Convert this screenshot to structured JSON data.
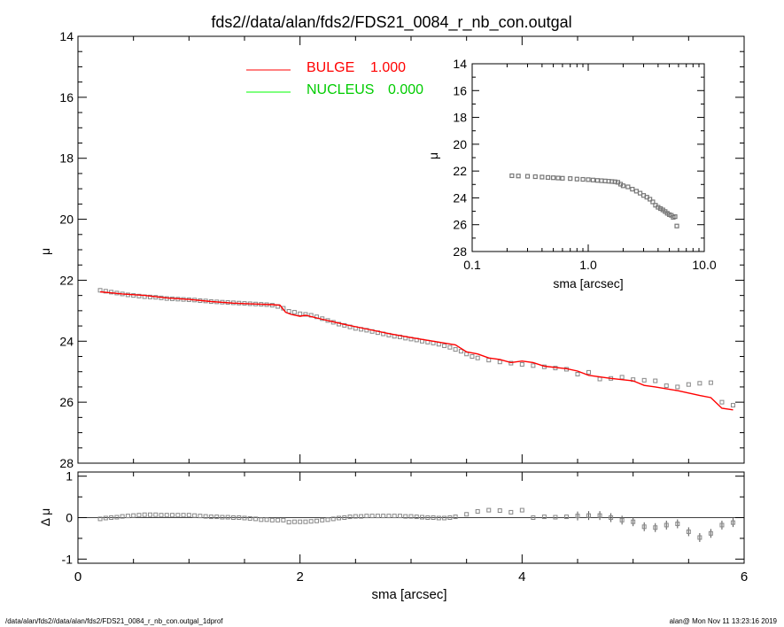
{
  "title": "fds2//data/alan/fds2/FDS21_0084_r_nb_con.outgal",
  "footer": {
    "left": "/data/alan/fds2//data/alan/fds2/FDS21_0084_r_nb_con.outgal_1dprof",
    "right": "alan@  Mon Nov 11 13:23:16 2019"
  },
  "legend": [
    {
      "name": "BULGE",
      "value": "1.000",
      "color": "#ff0000"
    },
    {
      "name": "NUCLEUS",
      "value": "0.000",
      "color": "#00ff00"
    }
  ],
  "chart_data": [
    {
      "type": "scatter",
      "panel": "main",
      "xlabel": "",
      "ylabel": "μ",
      "xlim": [
        0,
        6
      ],
      "ylim": [
        28,
        14
      ],
      "yticks": [
        "14",
        "16",
        "18",
        "20",
        "22",
        "24",
        "26",
        "28"
      ],
      "xticks": [],
      "series": [
        {
          "type": "scatter",
          "color": "#888888",
          "x": [
            0.2,
            0.25,
            0.3,
            0.35,
            0.4,
            0.45,
            0.5,
            0.55,
            0.6,
            0.65,
            0.7,
            0.75,
            0.8,
            0.85,
            0.9,
            0.95,
            1.0,
            1.05,
            1.1,
            1.15,
            1.2,
            1.25,
            1.3,
            1.35,
            1.4,
            1.45,
            1.5,
            1.55,
            1.6,
            1.65,
            1.7,
            1.75,
            1.8,
            1.85,
            1.9,
            1.95,
            2.0,
            2.05,
            2.1,
            2.15,
            2.2,
            2.25,
            2.3,
            2.35,
            2.4,
            2.45,
            2.5,
            2.55,
            2.6,
            2.65,
            2.7,
            2.75,
            2.8,
            2.85,
            2.9,
            2.95,
            3.0,
            3.05,
            3.1,
            3.15,
            3.2,
            3.25,
            3.3,
            3.35,
            3.4,
            3.45,
            3.5,
            3.55,
            3.6,
            3.7,
            3.8,
            3.9,
            4.0,
            4.1,
            4.2,
            4.3,
            4.4,
            4.5,
            4.6,
            4.7,
            4.8,
            4.9,
            5.0,
            5.1,
            5.2,
            5.3,
            5.4,
            5.5,
            5.6,
            5.7,
            5.8,
            5.9
          ],
          "y": [
            22.33,
            22.36,
            22.39,
            22.42,
            22.45,
            22.48,
            22.5,
            22.52,
            22.54,
            22.55,
            22.56,
            22.58,
            22.6,
            22.61,
            22.62,
            22.63,
            22.64,
            22.65,
            22.67,
            22.68,
            22.7,
            22.71,
            22.72,
            22.73,
            22.74,
            22.75,
            22.76,
            22.77,
            22.78,
            22.79,
            22.8,
            22.82,
            22.86,
            22.92,
            23.02,
            23.05,
            23.1,
            23.12,
            23.15,
            23.2,
            23.26,
            23.32,
            23.38,
            23.44,
            23.48,
            23.53,
            23.58,
            23.61,
            23.64,
            23.68,
            23.72,
            23.76,
            23.8,
            23.84,
            23.86,
            23.9,
            23.93,
            23.96,
            24.0,
            24.03,
            24.06,
            24.1,
            24.15,
            24.2,
            24.27,
            24.33,
            24.42,
            24.5,
            24.55,
            24.62,
            24.68,
            24.72,
            24.76,
            24.8,
            24.84,
            24.88,
            24.92,
            25.08,
            25.02,
            25.24,
            25.22,
            25.18,
            25.26,
            25.28,
            25.3,
            25.46,
            25.5,
            25.42,
            25.38,
            25.36,
            26.0,
            26.1
          ]
        },
        {
          "type": "line",
          "name": "BULGE",
          "color": "#ff0000",
          "x": [
            0.2,
            0.4,
            0.6,
            0.8,
            1.0,
            1.2,
            1.4,
            1.6,
            1.75,
            1.82,
            1.87,
            1.92,
            2.0,
            2.05,
            2.2,
            2.4,
            2.6,
            2.8,
            3.0,
            3.2,
            3.4,
            3.5,
            3.6,
            3.7,
            3.8,
            3.9,
            4.0,
            4.1,
            4.2,
            4.4,
            4.5,
            4.6,
            4.8,
            5.0,
            5.1,
            5.2,
            5.4,
            5.6,
            5.7,
            5.8,
            5.9
          ],
          "y": [
            22.38,
            22.45,
            22.5,
            22.58,
            22.63,
            22.7,
            22.75,
            22.78,
            22.8,
            22.82,
            23.05,
            23.12,
            23.18,
            23.15,
            23.28,
            23.45,
            23.6,
            23.75,
            23.88,
            24.0,
            24.12,
            24.35,
            24.42,
            24.55,
            24.6,
            24.7,
            24.65,
            24.7,
            24.82,
            24.9,
            24.98,
            25.12,
            25.22,
            25.3,
            25.45,
            25.5,
            25.62,
            25.78,
            25.85,
            26.2,
            26.25
          ]
        }
      ]
    },
    {
      "type": "scatter",
      "panel": "residual",
      "xlabel": "sma [arcsec]",
      "ylabel": "Δ μ",
      "xlim": [
        0,
        6
      ],
      "ylim": [
        -1.1,
        1.1
      ],
      "xticks": [
        "0",
        "2",
        "4",
        "6"
      ],
      "yticks": [
        "-1",
        "0",
        "1"
      ],
      "series": [
        {
          "type": "scatter",
          "color": "#888888",
          "x": [
            0.2,
            0.25,
            0.3,
            0.35,
            0.4,
            0.45,
            0.5,
            0.55,
            0.6,
            0.65,
            0.7,
            0.75,
            0.8,
            0.85,
            0.9,
            0.95,
            1.0,
            1.05,
            1.1,
            1.15,
            1.2,
            1.25,
            1.3,
            1.35,
            1.4,
            1.45,
            1.5,
            1.55,
            1.6,
            1.65,
            1.7,
            1.75,
            1.8,
            1.85,
            1.9,
            1.95,
            2.0,
            2.05,
            2.1,
            2.15,
            2.2,
            2.25,
            2.3,
            2.35,
            2.4,
            2.45,
            2.5,
            2.55,
            2.6,
            2.65,
            2.7,
            2.75,
            2.8,
            2.85,
            2.9,
            2.95,
            3.0,
            3.05,
            3.1,
            3.15,
            3.2,
            3.25,
            3.3,
            3.35,
            3.4,
            3.5,
            3.6,
            3.7,
            3.8,
            3.9,
            4.0,
            4.1,
            4.2,
            4.3,
            4.4,
            4.5,
            4.6,
            4.7,
            4.8,
            4.9,
            5.0,
            5.1,
            5.2,
            5.3,
            5.4,
            5.5,
            5.6,
            5.7,
            5.8,
            5.9
          ],
          "y": [
            -0.03,
            -0.01,
            0.0,
            0.01,
            0.03,
            0.04,
            0.05,
            0.06,
            0.07,
            0.07,
            0.07,
            0.06,
            0.06,
            0.06,
            0.06,
            0.06,
            0.06,
            0.05,
            0.04,
            0.03,
            0.02,
            0.02,
            0.01,
            0.01,
            0.0,
            0.0,
            -0.01,
            -0.02,
            -0.03,
            -0.05,
            -0.05,
            -0.06,
            -0.06,
            -0.06,
            -0.11,
            -0.1,
            -0.1,
            -0.1,
            -0.09,
            -0.08,
            -0.06,
            -0.05,
            -0.03,
            -0.01,
            0.0,
            0.02,
            0.03,
            0.03,
            0.04,
            0.04,
            0.04,
            0.04,
            0.04,
            0.04,
            0.04,
            0.03,
            0.03,
            0.02,
            0.01,
            0.0,
            0.0,
            -0.01,
            -0.01,
            0.0,
            0.02,
            0.08,
            0.15,
            0.18,
            0.17,
            0.13,
            0.18,
            0.0,
            0.02,
            0.01,
            0.02,
            0.04,
            0.05,
            0.05,
            0.0,
            -0.06,
            -0.1,
            -0.22,
            -0.24,
            -0.18,
            -0.15,
            -0.34,
            -0.48,
            -0.38,
            -0.18,
            -0.12
          ]
        }
      ]
    },
    {
      "type": "scatter",
      "panel": "inset",
      "xlabel": "sma [arcsec]",
      "ylabel": "μ",
      "xscale": "log",
      "xlim": [
        0.1,
        10.0
      ],
      "ylim": [
        28,
        14
      ],
      "xticks": [
        "0.1",
        "1.0",
        "10.0"
      ],
      "yticks": [
        "14",
        "16",
        "18",
        "20",
        "22",
        "24",
        "26",
        "28"
      ],
      "series": [
        {
          "type": "scatter",
          "color": "#777777",
          "x": [
            0.22,
            0.25,
            0.3,
            0.35,
            0.4,
            0.45,
            0.5,
            0.55,
            0.6,
            0.7,
            0.8,
            0.9,
            1.0,
            1.1,
            1.2,
            1.3,
            1.4,
            1.5,
            1.6,
            1.7,
            1.8,
            1.9,
            2.0,
            2.2,
            2.4,
            2.6,
            2.8,
            3.0,
            3.2,
            3.4,
            3.6,
            3.8,
            4.0,
            4.2,
            4.4,
            4.6,
            4.8,
            5.0,
            5.2,
            5.4,
            5.6,
            5.8
          ],
          "y": [
            22.35,
            22.37,
            22.39,
            22.42,
            22.45,
            22.48,
            22.5,
            22.52,
            22.54,
            22.56,
            22.6,
            22.62,
            22.64,
            22.67,
            22.7,
            22.72,
            22.74,
            22.76,
            22.78,
            22.8,
            22.84,
            22.98,
            23.1,
            23.18,
            23.35,
            23.5,
            23.65,
            23.82,
            23.95,
            24.1,
            24.3,
            24.55,
            24.7,
            24.8,
            24.9,
            25.02,
            25.15,
            25.25,
            25.3,
            25.45,
            25.4,
            26.1
          ]
        }
      ]
    }
  ]
}
